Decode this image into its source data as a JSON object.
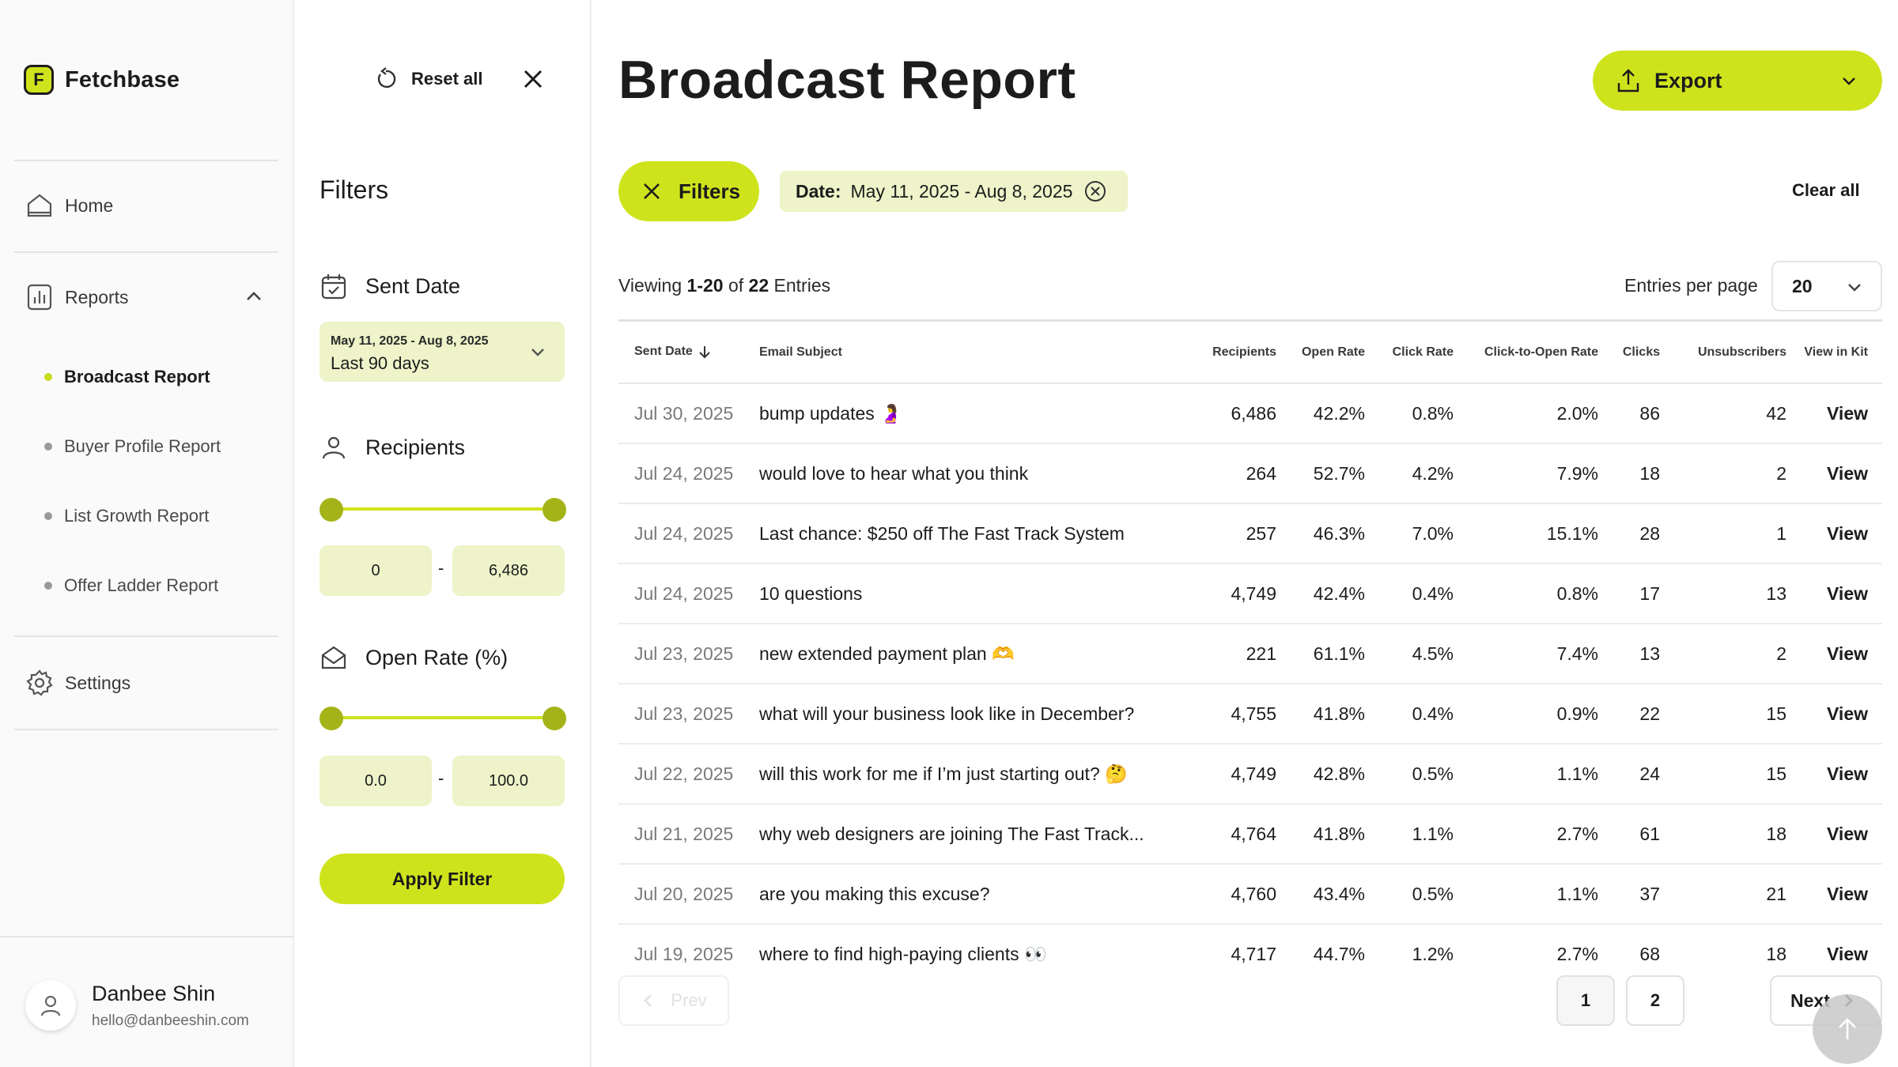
{
  "app": {
    "name": "Fetchbase",
    "logo_letter": "F"
  },
  "sidebar": {
    "home": "Home",
    "reports": "Reports",
    "reports_sub": [
      {
        "label": "Broadcast Report",
        "active": true
      },
      {
        "label": "Buyer Profile Report",
        "active": false
      },
      {
        "label": "List Growth Report",
        "active": false
      },
      {
        "label": "Offer Ladder Report",
        "active": false
      }
    ],
    "settings": "Settings",
    "user": {
      "name": "Danbee Shin",
      "email": "hello@danbeeshin.com"
    }
  },
  "filter_panel": {
    "reset_label": "Reset all",
    "title": "Filters",
    "sent_date": {
      "label": "Sent Date",
      "range_text": "May 11, 2025 - Aug 8, 2025",
      "preset": "Last 90 days"
    },
    "recipients": {
      "label": "Recipients",
      "min": "0",
      "max": "6,486",
      "slider_low": 0.0,
      "slider_high": 1.0
    },
    "open_rate": {
      "label": "Open Rate (%)",
      "min": "0.0",
      "max": "100.0",
      "slider_low": 0.0,
      "slider_high": 1.0
    },
    "sep": "-",
    "apply_label": "Apply Filter"
  },
  "main": {
    "title": "Broadcast Report",
    "export_label": "Export",
    "filters_chip": "Filters",
    "date_chip": {
      "label": "Date:",
      "value": "May 11, 2025 - Aug 8, 2025"
    },
    "clear_all": "Clear all",
    "viewing": {
      "prefix": "Viewing",
      "range": "1-20",
      "of": "of",
      "total": "22",
      "suffix": "Entries"
    },
    "entries_per_page_label": "Entries per page",
    "entries_per_page_value": "20",
    "columns": [
      "Sent Date",
      "Email Subject",
      "Recipients",
      "Open Rate",
      "Click Rate",
      "Click-to-Open Rate",
      "Clicks",
      "Unsubscribers",
      "View in Kit"
    ],
    "rows": [
      {
        "date": "Jul 30, 2025",
        "subject": "bump updates 🤰",
        "recipients": "6,486",
        "open": "42.2%",
        "click": "0.8%",
        "cto": "2.0%",
        "clicks": "86",
        "unsubs": "42",
        "view": "View"
      },
      {
        "date": "Jul 24, 2025",
        "subject": "would love to hear what you think",
        "recipients": "264",
        "open": "52.7%",
        "click": "4.2%",
        "cto": "7.9%",
        "clicks": "18",
        "unsubs": "2",
        "view": "View"
      },
      {
        "date": "Jul 24, 2025",
        "subject": "Last chance: $250 off The Fast Track System",
        "recipients": "257",
        "open": "46.3%",
        "click": "7.0%",
        "cto": "15.1%",
        "clicks": "28",
        "unsubs": "1",
        "view": "View"
      },
      {
        "date": "Jul 24, 2025",
        "subject": "10 questions",
        "recipients": "4,749",
        "open": "42.4%",
        "click": "0.4%",
        "cto": "0.8%",
        "clicks": "17",
        "unsubs": "13",
        "view": "View"
      },
      {
        "date": "Jul 23, 2025",
        "subject": "new extended payment plan 🫶",
        "recipients": "221",
        "open": "61.1%",
        "click": "4.5%",
        "cto": "7.4%",
        "clicks": "13",
        "unsubs": "2",
        "view": "View"
      },
      {
        "date": "Jul 23, 2025",
        "subject": "what will your business look like in December?",
        "recipients": "4,755",
        "open": "41.8%",
        "click": "0.4%",
        "cto": "0.9%",
        "clicks": "22",
        "unsubs": "15",
        "view": "View"
      },
      {
        "date": "Jul 22, 2025",
        "subject": "will this work for me if I’m just starting out? 🤔",
        "recipients": "4,749",
        "open": "42.8%",
        "click": "0.5%",
        "cto": "1.1%",
        "clicks": "24",
        "unsubs": "15",
        "view": "View"
      },
      {
        "date": "Jul 21, 2025",
        "subject": "why web designers are joining The Fast Track...",
        "recipients": "4,764",
        "open": "41.8%",
        "click": "1.1%",
        "cto": "2.7%",
        "clicks": "61",
        "unsubs": "18",
        "view": "View"
      },
      {
        "date": "Jul 20, 2025",
        "subject": "are you making this excuse?",
        "recipients": "4,760",
        "open": "43.4%",
        "click": "0.5%",
        "cto": "1.1%",
        "clicks": "37",
        "unsubs": "21",
        "view": "View"
      },
      {
        "date": "Jul 19, 2025",
        "subject": "where to find high-paying clients 👀",
        "recipients": "4,717",
        "open": "44.7%",
        "click": "1.2%",
        "cto": "2.7%",
        "clicks": "68",
        "unsubs": "18",
        "view": "View"
      }
    ],
    "pagination": {
      "prev": "Prev",
      "pages": [
        "1",
        "2"
      ],
      "current": "1",
      "next": "Next"
    }
  },
  "colors": {
    "accent": "#cfe31c",
    "accent_soft": "#eef3c9",
    "knob": "#a4b418"
  }
}
